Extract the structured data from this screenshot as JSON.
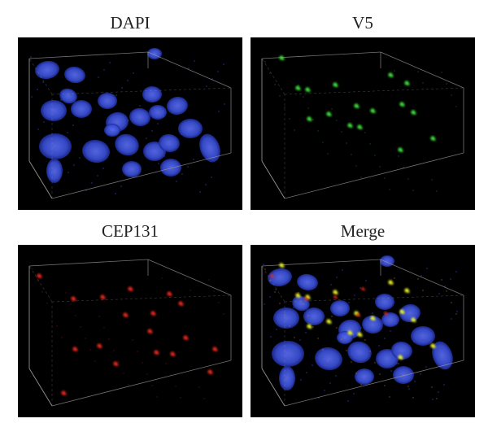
{
  "panels": [
    {
      "id": "dapi",
      "label": "DAPI",
      "channels": [
        "blue"
      ]
    },
    {
      "id": "v5",
      "label": "V5",
      "channels": [
        "green"
      ]
    },
    {
      "id": "cep131",
      "label": "CEP131",
      "channels": [
        "red"
      ]
    },
    {
      "id": "merge",
      "label": "Merge",
      "channels": [
        "blue",
        "green",
        "red"
      ]
    }
  ],
  "colors": {
    "background": "#000000",
    "nucleus": "#3a4fd6",
    "v5_signal": "#3fe03a",
    "cep131_signal": "#e8261c",
    "merge_overlap": "#e6f02a",
    "box_edge": "#9a9a9a"
  }
}
